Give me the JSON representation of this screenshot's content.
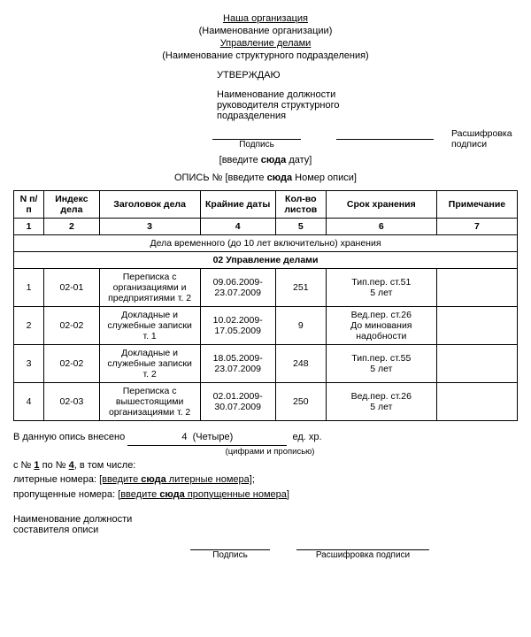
{
  "header": {
    "org_name": "Наша организация",
    "org_label": "(Наименование организации)",
    "dept_name": "Управление делами",
    "dept_label": "(Наименование структурного подразделения)"
  },
  "approve": {
    "title": "УТВЕРЖДАЮ",
    "position": "Наименование должности руководителя структурного подразделения",
    "sig_label": "Подпись",
    "decode_label": "Расшифровка подписи",
    "date_hint": "[введите сюда дату]",
    "date_bold": "сюда"
  },
  "doc_title": {
    "prefix": "ОПИСЬ №",
    "hint_full": "[введите сюда Номер описи]",
    "hint_bold": "сюда"
  },
  "table": {
    "columns": [
      "N п/п",
      "Индекс дела",
      "Заголовок дела",
      "Крайние даты",
      "Кол-во листов",
      "Срок хранения",
      "Примечание"
    ],
    "col_nums": [
      "1",
      "2",
      "3",
      "4",
      "5",
      "6",
      "7"
    ],
    "section1": "Дела временного (до 10 лет включительно) хранения",
    "section2": "02 Управление делами",
    "rows": [
      {
        "n": "1",
        "idx": "02-01",
        "title": "Переписка с организациями и предприятиями т. 2",
        "dates": "09.06.2009-23.07.2009",
        "sheets": "251",
        "term": "Тип.пер. ст.51\n5 лет",
        "note": ""
      },
      {
        "n": "2",
        "idx": "02-02",
        "title": "Докладные и служебные записки т. 1",
        "dates": "10.02.2009-17.05.2009",
        "sheets": "9",
        "term": "Вед.пер. ст.26\nДо минования надобности",
        "note": ""
      },
      {
        "n": "3",
        "idx": "02-02",
        "title": "Докладные и служебные записки т. 2",
        "dates": "18.05.2009-23.07.2009",
        "sheets": "248",
        "term": "Тип.пер. ст.55\n5 лет",
        "note": ""
      },
      {
        "n": "4",
        "idx": "02-03",
        "title": "Переписка с вышестоящими организациями т. 2",
        "dates": "02.01.2009-30.07.2009",
        "sheets": "250",
        "term": "Вед.пер. ст.26\n5 лет",
        "note": ""
      }
    ],
    "col_widths": [
      "30px",
      "55px",
      "100px",
      "75px",
      "50px",
      "110px",
      "80px"
    ]
  },
  "summary": {
    "line1_pre": "В данную опись внесено",
    "count_num": "4",
    "count_word": "(Четыре)",
    "units": "ед. хр.",
    "count_label": "(цифрами и прописью)",
    "range_pre": "с №",
    "range_from": "1",
    "range_mid": "по №",
    "range_to": "4",
    "range_post": ", в том числе:",
    "lit_label": "литерные номера:",
    "lit_hint": "[введите сюда литерные номера]",
    "miss_label": "пропущенные номера:",
    "miss_hint": "[введите сюда пропущенные номера]",
    "hint_bold": "сюда"
  },
  "footer": {
    "position": "Наименование должности составителя описи",
    "sig": "Подпись",
    "decode": "Расшифровка подписи"
  }
}
